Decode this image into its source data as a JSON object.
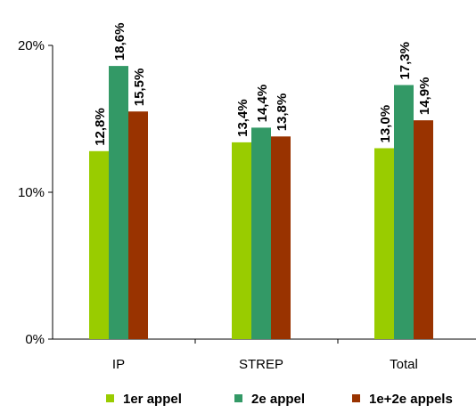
{
  "chart_data": {
    "type": "bar",
    "title": "",
    "xlabel": "",
    "ylabel": "",
    "categories": [
      "IP",
      "STREP",
      "Total"
    ],
    "ylim": [
      0,
      20
    ],
    "yticks": [
      0,
      10,
      20
    ],
    "ytick_labels": [
      "0%",
      "10%",
      "20%"
    ],
    "grid": false,
    "legend_position": "bottom",
    "series": [
      {
        "name": "1er appel",
        "color": "#99cc00",
        "values": [
          12.8,
          13.4,
          13.0
        ],
        "labels": [
          "12,8%",
          "13,4%",
          "13,0%"
        ]
      },
      {
        "name": "2e appel",
        "color": "#339966",
        "values": [
          18.6,
          14.4,
          17.3
        ],
        "labels": [
          "18,6%",
          "14,4%",
          "17,3%"
        ]
      },
      {
        "name": "1e+2e appels",
        "color": "#993300",
        "values": [
          15.5,
          13.8,
          14.9
        ],
        "labels": [
          "15,5%",
          "13,8%",
          "14,9%"
        ]
      }
    ]
  }
}
